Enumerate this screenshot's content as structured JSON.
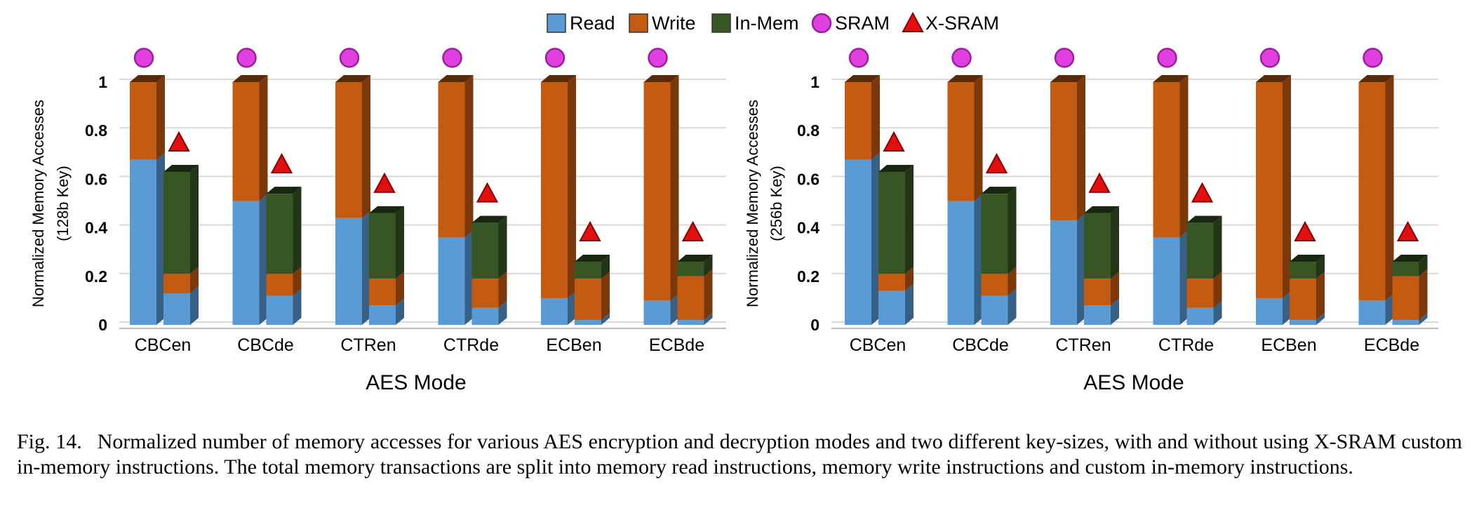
{
  "legend": [
    {
      "label": "Read",
      "kind": "box",
      "color": "#5b9bd5"
    },
    {
      "label": "Write",
      "kind": "box",
      "color": "#c55a11"
    },
    {
      "label": "In-Mem",
      "kind": "box",
      "color": "#375623"
    },
    {
      "label": "SRAM",
      "kind": "circle",
      "color": "#e040e0"
    },
    {
      "label": "X-SRAM",
      "kind": "triangle",
      "color": "#e01010"
    }
  ],
  "caption": {
    "label": "Fig. 14.",
    "text": "Normalized number of memory accesses for various AES encryption and decryption modes and two different key-sizes, with and without using X-SRAM custom in-memory instructions. The total memory transactions are split into memory read instructions, memory write instructions and custom in-memory instructions."
  },
  "chart_data": [
    {
      "type": "bar",
      "stacked": true,
      "categories": [
        "CBCen",
        "CBCde",
        "CTRen",
        "CTRde",
        "ECBen",
        "ECBde"
      ],
      "xlabel": "AES Mode",
      "ylabel_lines": [
        "Normalized Memory Accesses",
        "(128b Key)"
      ],
      "ylim": [
        0,
        1
      ],
      "yticks": [
        "0",
        "0.2",
        "0.4",
        "0.6",
        "0.8",
        "1"
      ],
      "grid": true,
      "groups": [
        {
          "name": "SRAM",
          "marker": "circle",
          "series": [
            {
              "name": "Read",
              "values": [
                0.68,
                0.51,
                0.44,
                0.36,
                0.11,
                0.1
              ]
            },
            {
              "name": "Write",
              "values": [
                0.32,
                0.49,
                0.56,
                0.64,
                0.89,
                0.9
              ]
            },
            {
              "name": "In-Mem",
              "values": [
                0,
                0,
                0,
                0,
                0,
                0
              ]
            }
          ]
        },
        {
          "name": "X-SRAM",
          "marker": "triangle",
          "series": [
            {
              "name": "Read",
              "values": [
                0.13,
                0.12,
                0.08,
                0.07,
                0.02,
                0.02
              ]
            },
            {
              "name": "Write",
              "values": [
                0.08,
                0.09,
                0.11,
                0.12,
                0.17,
                0.18
              ]
            },
            {
              "name": "In-Mem",
              "values": [
                0.42,
                0.33,
                0.27,
                0.23,
                0.07,
                0.06
              ]
            }
          ]
        }
      ]
    },
    {
      "type": "bar",
      "stacked": true,
      "categories": [
        "CBCen",
        "CBCde",
        "CTRen",
        "CTRde",
        "ECBen",
        "ECBde"
      ],
      "xlabel": "AES Mode",
      "ylabel_lines": [
        "Normalized Memory Accesses",
        "(256b Key)"
      ],
      "ylim": [
        0,
        1
      ],
      "yticks": [
        "0",
        "0.2",
        "0.4",
        "0.6",
        "0.8",
        "1"
      ],
      "grid": true,
      "groups": [
        {
          "name": "SRAM",
          "marker": "circle",
          "series": [
            {
              "name": "Read",
              "values": [
                0.68,
                0.51,
                0.43,
                0.36,
                0.11,
                0.1
              ]
            },
            {
              "name": "Write",
              "values": [
                0.32,
                0.49,
                0.57,
                0.64,
                0.89,
                0.9
              ]
            },
            {
              "name": "In-Mem",
              "values": [
                0,
                0,
                0,
                0,
                0,
                0
              ]
            }
          ]
        },
        {
          "name": "X-SRAM",
          "marker": "triangle",
          "series": [
            {
              "name": "Read",
              "values": [
                0.14,
                0.12,
                0.08,
                0.07,
                0.02,
                0.02
              ]
            },
            {
              "name": "Write",
              "values": [
                0.07,
                0.09,
                0.11,
                0.12,
                0.17,
                0.18
              ]
            },
            {
              "name": "In-Mem",
              "values": [
                0.42,
                0.33,
                0.27,
                0.23,
                0.07,
                0.06
              ]
            }
          ]
        }
      ]
    }
  ]
}
